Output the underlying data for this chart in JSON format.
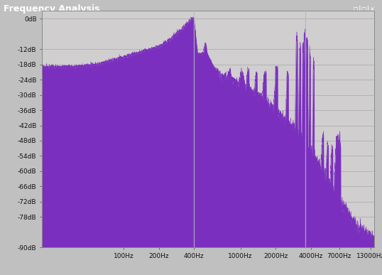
{
  "title": "Frequency Analysis",
  "bg_color": "#c0c0c0",
  "plot_bg_color": "#d0cece",
  "fill_color": "#7b2fbe",
  "line_color": "#8833cc",
  "cursor_line_color": "#b0b8c0",
  "ylim": [
    -90,
    3
  ],
  "yticks": [
    0,
    -12,
    -18,
    -24,
    -30,
    -36,
    -42,
    -48,
    -54,
    -60,
    -66,
    -72,
    -78,
    -90
  ],
  "ytick_labels": [
    "0dB",
    "-12dB",
    "-18dB",
    "-24dB",
    "-30dB",
    "-36dB",
    "-42dB",
    "-48dB",
    "-54dB",
    "-60dB",
    "-66dB",
    "-72dB",
    "-78dB",
    "-90dB"
  ],
  "xtick_positions": [
    100,
    200,
    400,
    1000,
    2000,
    4000,
    7000,
    13000
  ],
  "xtick_labels": [
    "100Hz",
    "200Hz",
    "400Hz",
    "1000Hz",
    "2000Hz",
    "4000Hz",
    "7000Hz",
    "13000Hz"
  ],
  "cursor_x1": 400,
  "cursor_x2": 3600,
  "titlebar_color": "#1155aa",
  "titlebar_text_color": "#ffffff",
  "freq_min": 20,
  "freq_max": 14000,
  "seed": 17
}
